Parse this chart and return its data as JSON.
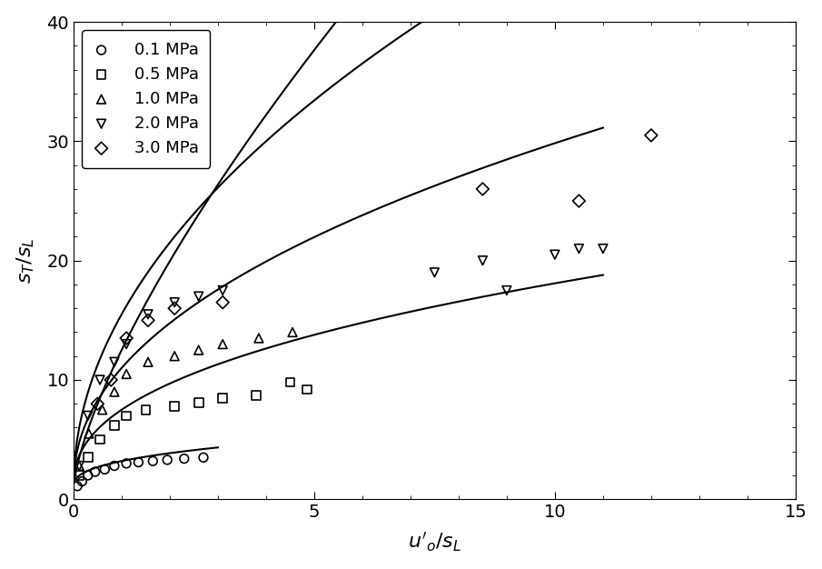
{
  "title": "",
  "xlabel": "$u'_o/s_L$",
  "ylabel": "$s_T/s_L$",
  "xlim": [
    0,
    15
  ],
  "ylim": [
    0,
    40
  ],
  "xticks": [
    0,
    5,
    10,
    15
  ],
  "yticks": [
    0,
    10,
    20,
    30,
    40
  ],
  "series": [
    {
      "label": "0.1 MPa",
      "marker": "o",
      "scatter_x": [
        0.08,
        0.18,
        0.3,
        0.45,
        0.65,
        0.85,
        1.1,
        1.35,
        1.65,
        1.95,
        2.3,
        2.7
      ],
      "scatter_y": [
        1.1,
        1.5,
        2.0,
        2.3,
        2.5,
        2.8,
        3.0,
        3.1,
        3.2,
        3.3,
        3.4,
        3.5
      ],
      "curve_A": 2.2,
      "curve_n": 0.38
    },
    {
      "label": "0.5 MPa",
      "marker": "s",
      "scatter_x": [
        0.12,
        0.3,
        0.55,
        0.85,
        1.1,
        1.5,
        2.1,
        2.6,
        3.1,
        3.8,
        4.5,
        4.85
      ],
      "scatter_y": [
        2.0,
        3.5,
        5.0,
        6.2,
        7.0,
        7.5,
        7.8,
        8.1,
        8.5,
        8.7,
        9.8,
        9.2
      ],
      "curve_A": 6.5,
      "curve_n": 0.42
    },
    {
      "label": "1.0 MPa",
      "marker": "^",
      "scatter_x": [
        0.12,
        0.32,
        0.6,
        0.85,
        1.1,
        1.55,
        2.1,
        2.6,
        3.1,
        3.85,
        4.55
      ],
      "scatter_y": [
        2.8,
        5.5,
        7.5,
        9.0,
        10.5,
        11.5,
        12.0,
        12.5,
        13.0,
        13.5,
        14.0
      ],
      "curve_A": 10.0,
      "curve_n": 0.46
    },
    {
      "label": "2.0 MPa",
      "marker": "v",
      "scatter_x": [
        0.12,
        0.3,
        0.55,
        0.85,
        1.1,
        1.55,
        2.1,
        2.6,
        3.1,
        7.5,
        8.5,
        9.0,
        10.0,
        10.5,
        11.0
      ],
      "scatter_y": [
        2.8,
        7.0,
        10.0,
        11.5,
        13.0,
        15.5,
        16.5,
        17.0,
        17.5,
        19.0,
        20.0,
        17.5,
        20.5,
        21.0,
        21.0
      ],
      "curve_A": 14.5,
      "curve_n": 0.5
    },
    {
      "label": "3.0 MPa",
      "marker": "D",
      "scatter_x": [
        0.5,
        0.78,
        1.1,
        1.55,
        2.1,
        3.1,
        8.5,
        10.5,
        12.0
      ],
      "scatter_y": [
        8.0,
        10.0,
        13.5,
        15.0,
        16.0,
        16.5,
        26.0,
        25.0,
        30.5
      ],
      "curve_A": 11.5,
      "curve_n": 0.72
    }
  ],
  "marker_size": 7,
  "line_color": "black",
  "marker_color": "none",
  "marker_edge_color": "black",
  "legend_loc": "upper left",
  "background_color": "white",
  "font_size": 14
}
